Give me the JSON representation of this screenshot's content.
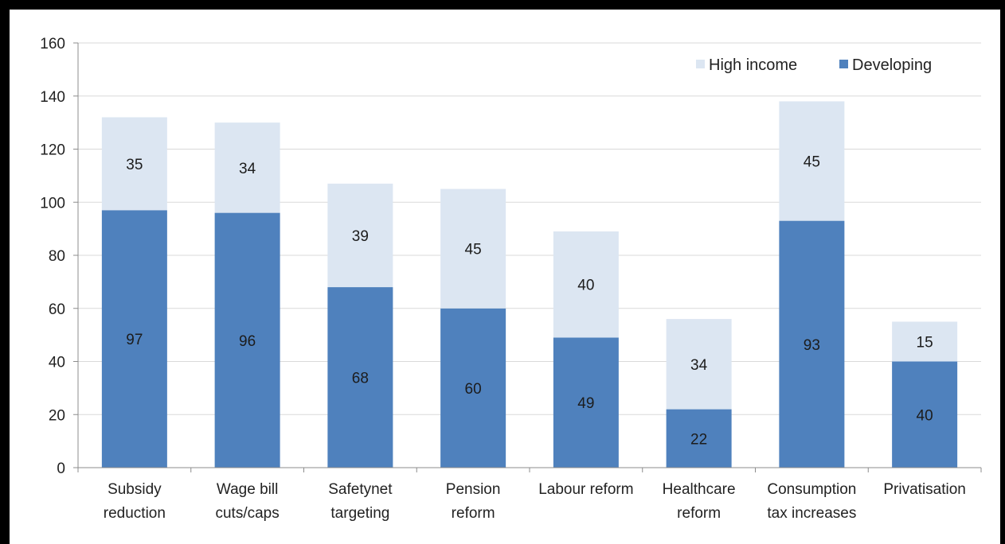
{
  "colors": {
    "developing": "#4f81bd",
    "high_income": "#dce6f2",
    "grid": "#d9d9d9",
    "axis": "#8c8c8c"
  },
  "chart_data": {
    "type": "bar",
    "stacked": true,
    "title": "",
    "xlabel": "",
    "ylabel": "",
    "ylim": [
      0,
      160
    ],
    "yticks": [
      0,
      20,
      40,
      60,
      80,
      100,
      120,
      140,
      160
    ],
    "grid": true,
    "legend_position": "top-right",
    "categories": [
      [
        "Subsidy",
        "reduction"
      ],
      [
        "Wage bill",
        "cuts/caps"
      ],
      [
        "Safetynet",
        "targeting"
      ],
      [
        "Pension",
        "reform"
      ],
      [
        "Labour reform"
      ],
      [
        "Healthcare",
        "reform"
      ],
      [
        "Consumption",
        "tax increases"
      ],
      [
        "Privatisation"
      ]
    ],
    "series": [
      {
        "name": "Developing",
        "color": "#4f81bd",
        "values": [
          97,
          96,
          68,
          60,
          49,
          22,
          93,
          40
        ]
      },
      {
        "name": "High income",
        "color": "#dce6f2",
        "values": [
          35,
          34,
          39,
          45,
          40,
          34,
          45,
          15
        ]
      }
    ],
    "legend_order": [
      "High income",
      "Developing"
    ]
  }
}
